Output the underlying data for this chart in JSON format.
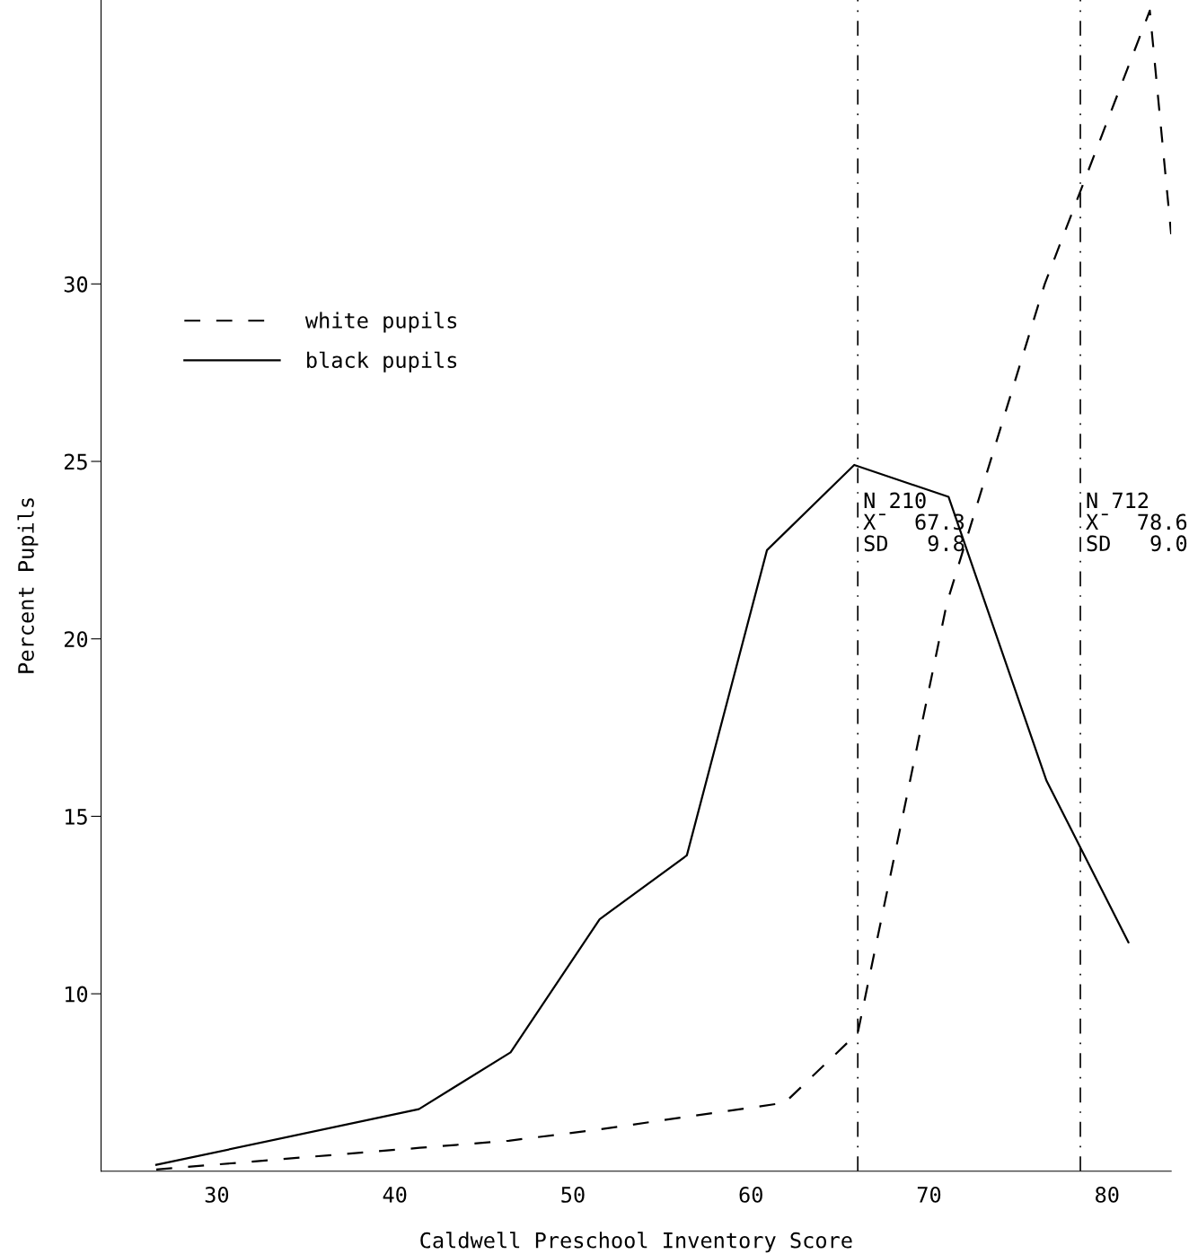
{
  "chart_data": {
    "type": "line",
    "xlabel": "Caldwell Preschool Inventory Score",
    "ylabel": "Percent Pupils",
    "xlim": [
      23.5,
      83.6
    ],
    "ylim": [
      5,
      38
    ],
    "xticks": [
      30,
      40,
      50,
      60,
      70,
      80
    ],
    "yticks": [
      10,
      15,
      20,
      25,
      30
    ],
    "series": [
      {
        "name": "white pupils",
        "color": "#000000",
        "line_style": "dashed",
        "x": [
          26.6,
          41.4,
          46.4,
          51.4,
          56.6,
          61.9,
          66,
          71,
          76.5,
          82.4,
          83.6
        ],
        "values": [
          5.05,
          5.66,
          5.86,
          6.17,
          6.55,
          6.93,
          8.9,
          21.0,
          30.0,
          37.7,
          31.4
        ]
      },
      {
        "name": "black pupils",
        "color": "#000000",
        "line_style": "solid",
        "x": [
          26.6,
          41.35,
          46.5,
          51.5,
          56.4,
          60.9,
          65.8,
          71.1,
          76.6,
          81.2
        ],
        "values": [
          5.18,
          6.75,
          8.35,
          12.1,
          13.9,
          22.5,
          24.9,
          24.0,
          16.0,
          11.45
        ]
      }
    ],
    "ref_lines": [
      {
        "axis": "x",
        "value": 66,
        "label": "N 210\nX̄  67.3\nSD   9.8",
        "line_style": "dashdot",
        "color": "#000000"
      },
      {
        "axis": "x",
        "value": 78.5,
        "label": "N 712\nX̄  78.6\nSD   9.0",
        "line_style": "dashdot",
        "color": "#000000"
      }
    ],
    "legend": "top left",
    "grid": false,
    "marker": "none"
  }
}
